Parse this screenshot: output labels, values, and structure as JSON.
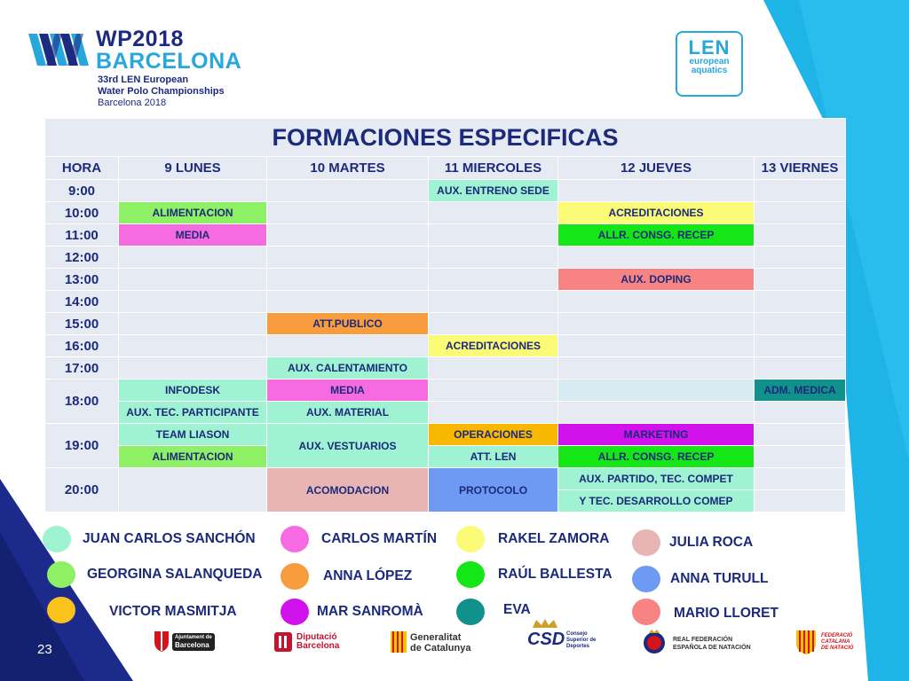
{
  "event": {
    "title_line1": "WP2018",
    "title_line2": "BARCELONA",
    "subtitle_line1": "33rd LEN European",
    "subtitle_line2": "Water Polo Championships",
    "subtitle_line3": "Barcelona 2018"
  },
  "len_logo": {
    "mark": "LEN",
    "line1": "european",
    "line2": "aquatics"
  },
  "schedule": {
    "title": "FORMACIONES ESPECIFICAS",
    "headers": [
      "HORA",
      "9 LUNES",
      "10 MARTES",
      "11 MIERCOLES",
      "12 JUEVES",
      "13 VIERNES"
    ],
    "hours": {
      "h9": "9:00",
      "h10": "10:00",
      "h11": "11:00",
      "h12": "12:00",
      "h13": "13:00",
      "h14": "14:00",
      "h15": "15:00",
      "h16": "16:00",
      "h17": "17:00",
      "h18": "18:00",
      "h19": "19:00",
      "h20": "20:00"
    },
    "entries": {
      "mie_9": "AUX. ENTRENO SEDE",
      "lun_10": "ALIMENTACION",
      "jue_10": "ACREDITACIONES",
      "lun_11": "MEDIA",
      "jue_11": "ALLR. CONSG. RECEP",
      "jue_13": "AUX. DOPING",
      "mar_15": "ATT.PUBLICO",
      "mie_16": "ACREDITACIONES",
      "mar_17": "AUX. CALENTAMIENTO",
      "lun_18a": "INFODESK",
      "mar_18a": "MEDIA",
      "vie_18a": "ADM. MEDICA",
      "lun_18b": "AUX. TEC. PARTICIPANTE",
      "mar_18b": "AUX. MATERIAL",
      "lun_19a": "TEAM LIASON",
      "mar_19": "AUX. VESTUARIOS",
      "mie_19a": "OPERACIONES",
      "jue_19a": "MARKETING",
      "lun_19b": "ALIMENTACION",
      "mie_19b": "ATT. LEN",
      "jue_19b": "ALLR. CONSG. RECEP",
      "mar_20": "ACOMODACION",
      "mie_20": "PROTOCOLO",
      "jue_20a": "AUX. PARTIDO, TEC. COMPET",
      "jue_20b": "Y TEC. DESARROLLO COMEP"
    }
  },
  "legend": [
    {
      "name": "JUAN CARLOS SANCHÓN",
      "color": "#9ff2d2"
    },
    {
      "name": "CARLOS MARTÍN",
      "color": "#f66be0"
    },
    {
      "name": "RAKEL ZAMORA",
      "color": "#fbfb78"
    },
    {
      "name": "JULIA ROCA",
      "color": "#e8b4b4"
    },
    {
      "name": "GEORGINA SALANQUEDA",
      "color": "#8ef065"
    },
    {
      "name": "ANNA LÓPEZ",
      "color": "#f79d3d"
    },
    {
      "name": "RAÚL BALLESTA",
      "color": "#15e615"
    },
    {
      "name": "ANNA TURULL",
      "color": "#6f9af3"
    },
    {
      "name": "VICTOR MASMITJA",
      "color": "#f9c31c"
    },
    {
      "name": "MAR SANROMÀ",
      "color": "#d212ec"
    },
    {
      "name": "EVA",
      "color": "#11908c"
    },
    {
      "name": "MARIO LLORET",
      "color": "#f88383"
    }
  ],
  "page_number": "23",
  "sponsors": {
    "s1_line1": "Ajuntament de",
    "s1_line2": "Barcelona",
    "s2_line1": "Diputació",
    "s2_line2": "Barcelona",
    "s3_line1": "Generalitat",
    "s3_line2": "de Catalunya",
    "s4_mark": "CSD",
    "s4_line1": "Consejo",
    "s4_line2": "Superior de",
    "s4_line3": "Deportes",
    "s5_line1": "REAL FEDERACIÓN",
    "s5_line2": "ESPAÑOLA DE NATACIÓN",
    "s6_line1": "FEDERACIÓ",
    "s6_line2": "CATALANA",
    "s6_line3": "DE NATACIÓ"
  }
}
